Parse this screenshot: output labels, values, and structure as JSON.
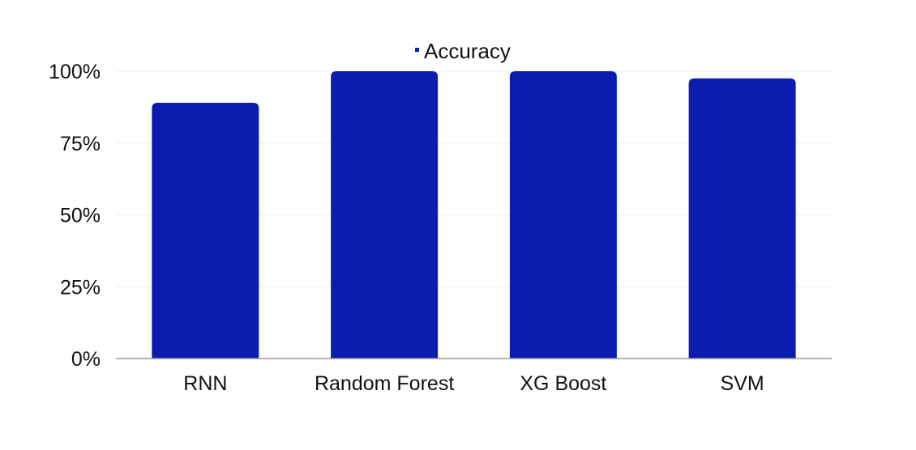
{
  "chart_data": {
    "type": "bar",
    "categories": [
      "RNN",
      "Random Forest",
      "XG Boost",
      "SVM"
    ],
    "series": [
      {
        "name": "Accuracy",
        "values": [
          89,
          100,
          100,
          97.5
        ],
        "color": "#0a1db0"
      }
    ],
    "ylim": [
      0,
      100
    ],
    "yticks": [
      0,
      25,
      50,
      75,
      100
    ],
    "ytick_labels": [
      "0%",
      "25%",
      "50%",
      "75%",
      "100%"
    ],
    "title": "",
    "xlabel": "",
    "ylabel": "",
    "grid": true,
    "legend_position": "top-center"
  }
}
